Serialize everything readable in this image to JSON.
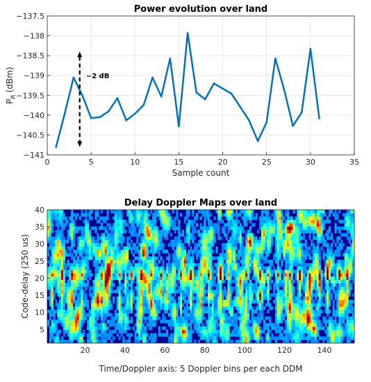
{
  "chart_data": [
    {
      "type": "line",
      "title": "Power evolution over land",
      "xlabel": "Sample count",
      "ylabel_main": "P",
      "ylabel_sub": "R",
      "ylabel_unit": "(dBm)",
      "xlim": [
        0,
        35
      ],
      "ylim": [
        -141,
        -137.5
      ],
      "xticks": [
        0,
        5,
        10,
        15,
        20,
        25,
        30,
        35
      ],
      "yticks": [
        -141,
        -140.5,
        -140,
        -139.5,
        -139,
        -138.5,
        -138,
        -137.5
      ],
      "grid": true,
      "line_color": "#0072BD",
      "series": [
        {
          "x": [
            1,
            2,
            3,
            4,
            5,
            6,
            7,
            8,
            9,
            10,
            11,
            12,
            13,
            14,
            15,
            16,
            17,
            18,
            19,
            20,
            21,
            22,
            23,
            24,
            25,
            26,
            27,
            28,
            29,
            30,
            31
          ],
          "values": [
            -140.8,
            -139.95,
            -139.05,
            -139.5,
            -140.07,
            -140.05,
            -139.9,
            -139.57,
            -140.13,
            -139.96,
            -139.74,
            -139.05,
            -139.53,
            -138.57,
            -140.28,
            -137.93,
            -139.43,
            -139.6,
            -139.2,
            -139.33,
            -139.46,
            -139.79,
            -140.13,
            -140.65,
            -140.18,
            -138.57,
            -139.36,
            -140.27,
            -139.93,
            -138.33,
            -140.08
          ]
        }
      ],
      "annotation": {
        "text": "~2 dB",
        "x": 3.7,
        "y_top": -138.4,
        "y_bottom": -140.8
      }
    },
    {
      "type": "heatmap",
      "title": "Delay Doppler Maps over land",
      "xlabel": "Time/Doppler axis: 5 Doppler bins per each DDM",
      "ylabel": "Code-delay (250 us)",
      "xlim": [
        1,
        155
      ],
      "ylim": [
        1,
        40
      ],
      "xticks": [
        20,
        40,
        60,
        80,
        100,
        120,
        140
      ],
      "yticks": [
        5,
        10,
        15,
        20,
        25,
        30,
        35,
        40
      ],
      "colormap": "jet",
      "peak_delay_row": 21,
      "peak_doppler_bins": [
        3,
        8,
        13,
        18,
        28,
        31,
        37,
        43,
        48,
        53,
        58,
        61,
        68,
        73,
        78,
        82,
        88,
        92,
        101,
        108,
        112,
        117,
        121,
        123,
        128,
        133,
        138,
        142,
        148,
        152
      ]
    }
  ]
}
